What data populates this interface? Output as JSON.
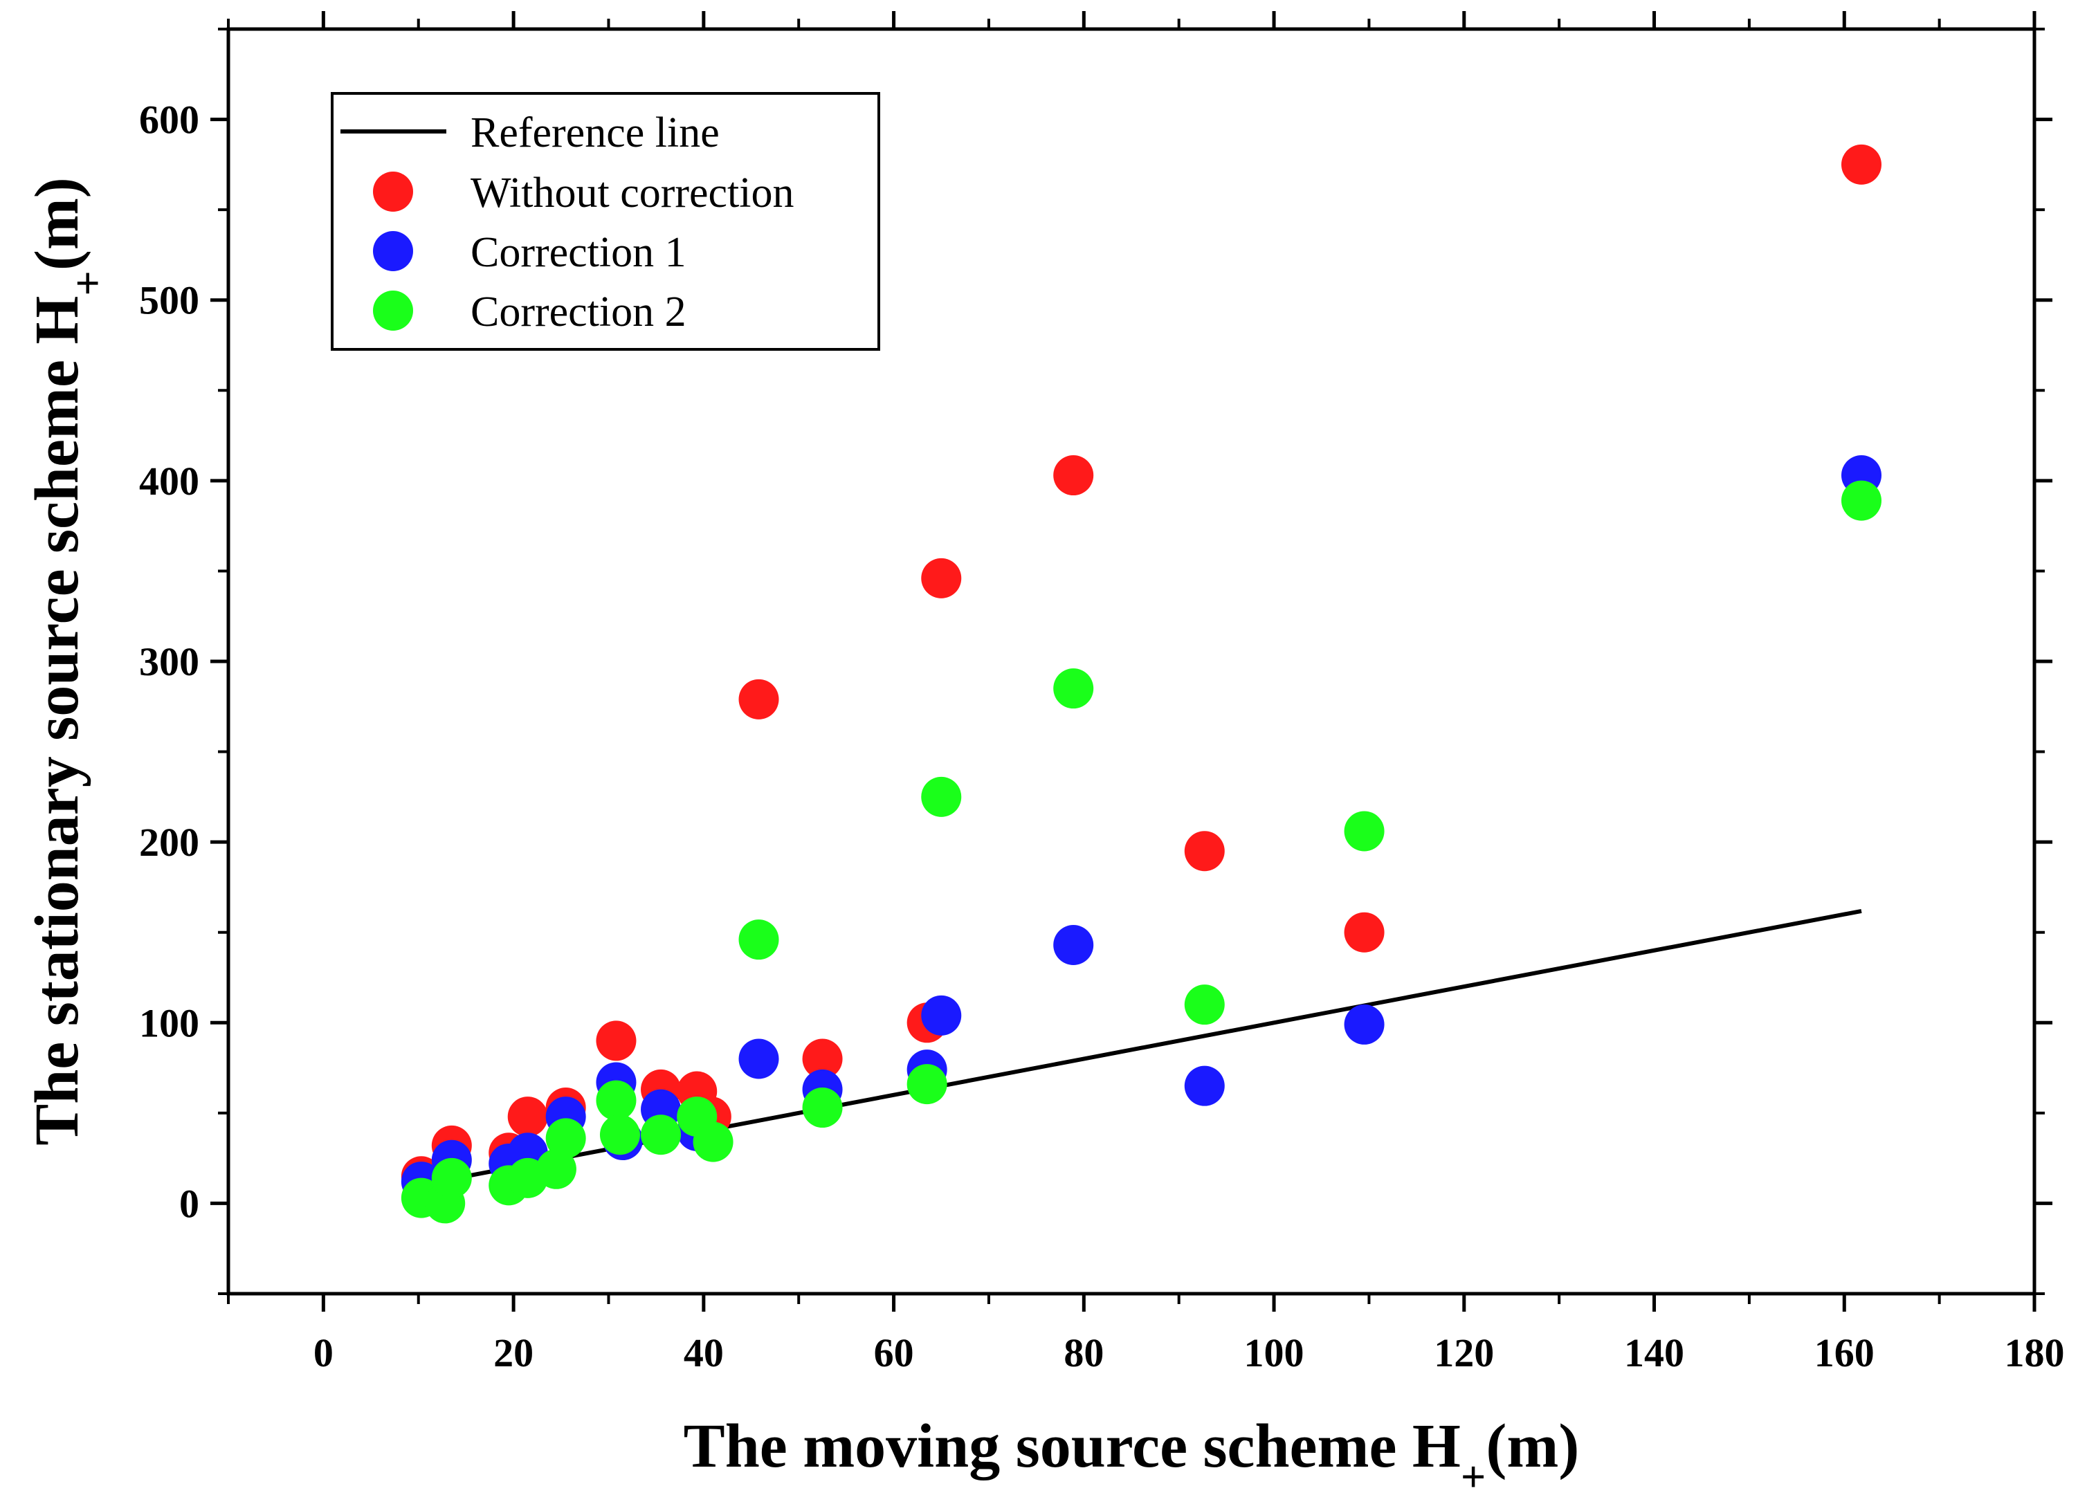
{
  "chart_data": {
    "type": "scatter",
    "title": "",
    "xlabel": "The moving source scheme H",
    "xlabel_sub": "+",
    "xlabel_suffix": "(m)",
    "ylabel": "The stationary source scheme H",
    "ylabel_sub": "+",
    "ylabel_suffix": "(m)",
    "xlim": [
      -10,
      180
    ],
    "ylim": [
      -50,
      650
    ],
    "xticks": [
      "0",
      "20",
      "40",
      "60",
      "80",
      "100",
      "120",
      "140",
      "160",
      "180"
    ],
    "xtick_values": [
      0,
      20,
      40,
      60,
      80,
      100,
      120,
      140,
      160,
      180
    ],
    "yticks": [
      "0",
      "100",
      "200",
      "300",
      "400",
      "500",
      "600"
    ],
    "ytick_values": [
      0,
      100,
      200,
      300,
      400,
      500,
      600
    ],
    "legend_position": "top-left",
    "reference_line": {
      "name": "Reference line",
      "color": "#000000",
      "x": [
        10.5,
        161.8
      ],
      "y": [
        10.5,
        161.8
      ]
    },
    "series": [
      {
        "name": "Without correction",
        "color": "#ff1a1a",
        "points": [
          [
            10.3,
            15
          ],
          [
            13.5,
            32
          ],
          [
            19.5,
            28
          ],
          [
            21.5,
            48
          ],
          [
            25.5,
            53
          ],
          [
            30.8,
            90
          ],
          [
            35.5,
            63
          ],
          [
            39.3,
            62
          ],
          [
            40.8,
            48
          ],
          [
            45.8,
            279
          ],
          [
            52.5,
            80
          ],
          [
            63.5,
            100
          ],
          [
            65.0,
            346
          ],
          [
            78.9,
            403
          ],
          [
            92.7,
            195
          ],
          [
            109.5,
            150
          ],
          [
            161.8,
            575
          ]
        ]
      },
      {
        "name": "Correction 1",
        "color": "#1a1aff",
        "points": [
          [
            10.3,
            12
          ],
          [
            13.5,
            24
          ],
          [
            19.5,
            22
          ],
          [
            21.5,
            28
          ],
          [
            25.5,
            48
          ],
          [
            30.8,
            67
          ],
          [
            31.5,
            35
          ],
          [
            35.5,
            52
          ],
          [
            39.3,
            40
          ],
          [
            45.8,
            80
          ],
          [
            52.5,
            63
          ],
          [
            63.5,
            74
          ],
          [
            65.0,
            104
          ],
          [
            78.9,
            143
          ],
          [
            92.7,
            65
          ],
          [
            109.5,
            99
          ],
          [
            161.8,
            403
          ]
        ]
      },
      {
        "name": "Correction 2",
        "color": "#1aff1a",
        "points": [
          [
            10.3,
            3
          ],
          [
            12.8,
            0
          ],
          [
            13.5,
            14
          ],
          [
            19.5,
            10
          ],
          [
            21.5,
            14
          ],
          [
            24.5,
            19
          ],
          [
            25.5,
            36
          ],
          [
            30.8,
            57
          ],
          [
            31.2,
            38
          ],
          [
            35.5,
            38
          ],
          [
            39.3,
            48
          ],
          [
            41.0,
            34
          ],
          [
            45.8,
            146
          ],
          [
            52.5,
            53
          ],
          [
            63.5,
            66
          ],
          [
            65.0,
            225
          ],
          [
            78.9,
            285
          ],
          [
            92.7,
            110
          ],
          [
            109.5,
            206
          ],
          [
            161.8,
            389
          ]
        ]
      }
    ]
  }
}
